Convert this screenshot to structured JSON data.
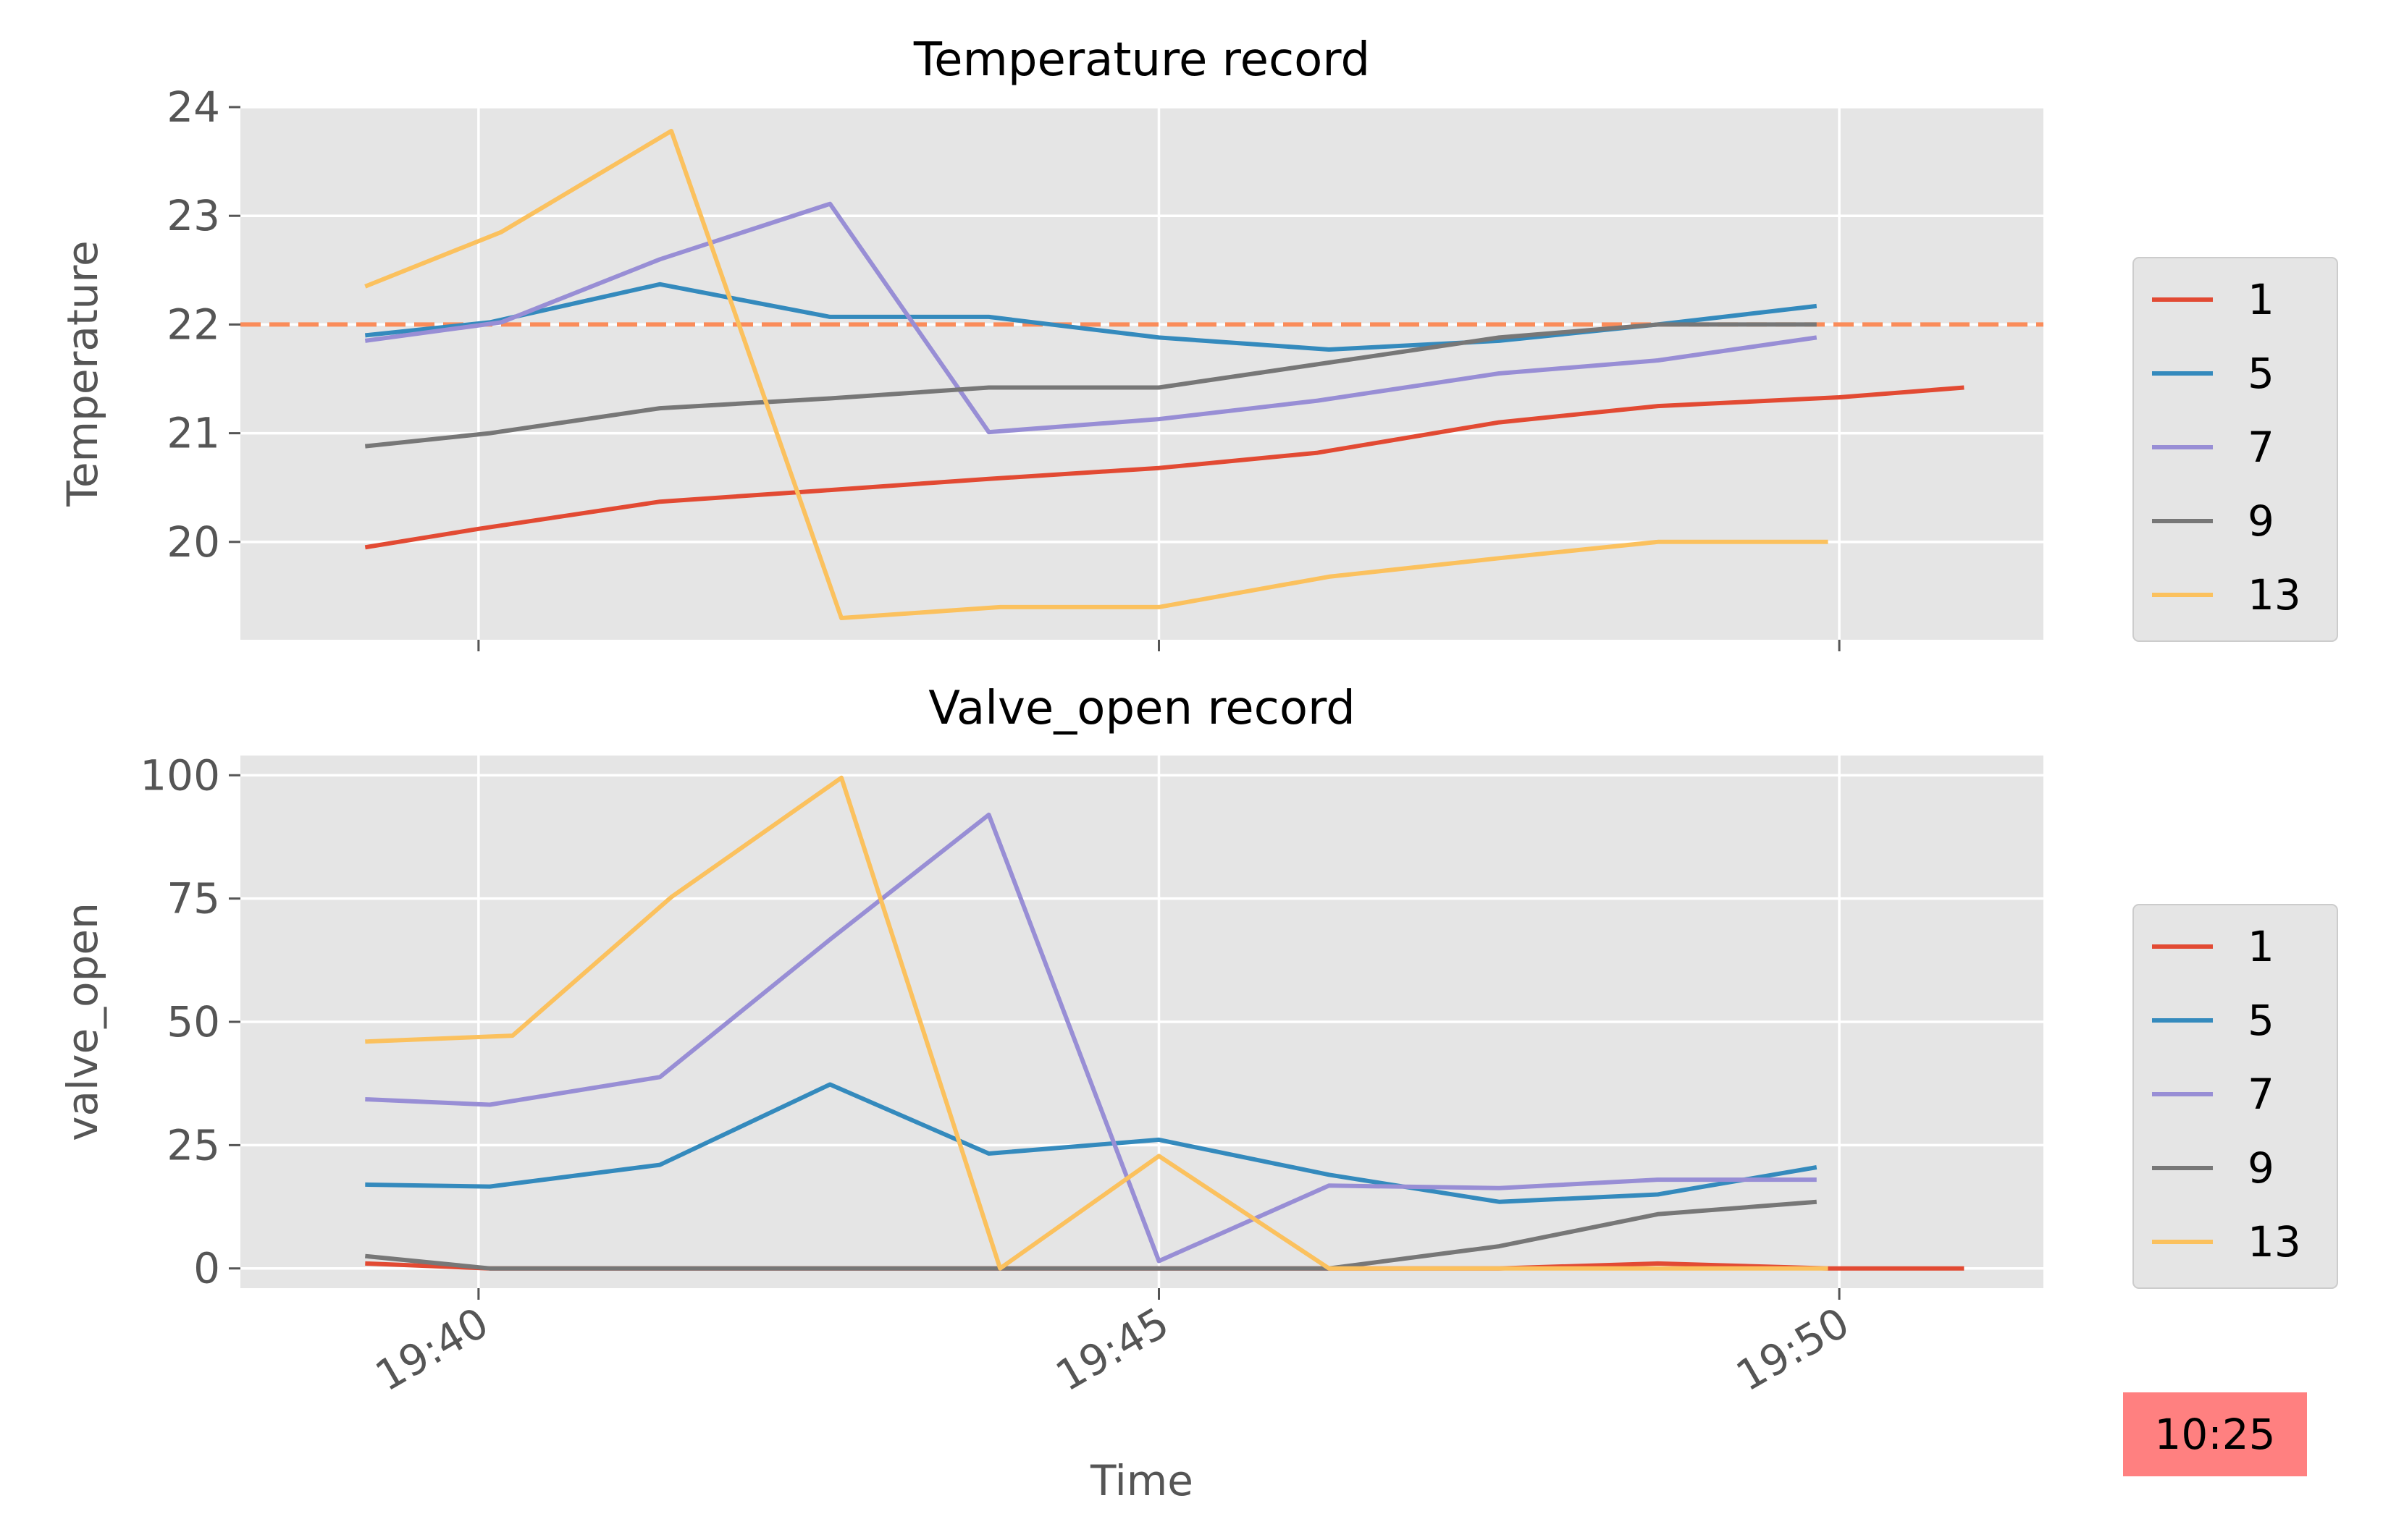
{
  "colors": {
    "1": "#e24a33",
    "5": "#348abd",
    "7": "#988ed5",
    "9": "#777777",
    "13": "#fbc15e",
    "setpoint": "#fa8c5a",
    "panel": "#e5e5e5",
    "grid": "#ffffff",
    "badge": "#ff8080"
  },
  "time_badge": "10:25",
  "chart_data": [
    {
      "type": "line",
      "title": "Temperature record",
      "xlabel": "",
      "ylabel": "Temperature",
      "xlim": [
        "19:38:15",
        "19:51:30"
      ],
      "ylim": [
        19.1,
        24.0
      ],
      "yticks": [
        20,
        21,
        22,
        23,
        24
      ],
      "xticks": [
        "19:40",
        "19:45",
        "19:50"
      ],
      "xtick_labels_shown": false,
      "grid": true,
      "legend_position": "right",
      "reference_line": {
        "y": 22,
        "style": "dashed"
      },
      "series": [
        {
          "name": "1",
          "points": [
            [
              "19:39:10",
              19.95
            ],
            [
              "19:40:00",
              20.12
            ],
            [
              "19:41:20",
              20.37
            ],
            [
              "19:42:30",
              20.47
            ],
            [
              "19:43:45",
              20.58
            ],
            [
              "19:45:00",
              20.68
            ],
            [
              "19:46:10",
              20.82
            ],
            [
              "19:47:30",
              21.1
            ],
            [
              "19:48:40",
              21.25
            ],
            [
              "19:50:00",
              21.33
            ],
            [
              "19:50:55",
              21.42
            ]
          ]
        },
        {
          "name": "5",
          "points": [
            [
              "19:39:10",
              21.9
            ],
            [
              "19:40:05",
              22.02
            ],
            [
              "19:41:20",
              22.37
            ],
            [
              "19:42:35",
              22.07
            ],
            [
              "19:43:45",
              22.07
            ],
            [
              "19:45:00",
              21.88
            ],
            [
              "19:46:15",
              21.77
            ],
            [
              "19:47:30",
              21.85
            ],
            [
              "19:48:40",
              22.0
            ],
            [
              "19:49:50",
              22.17
            ]
          ]
        },
        {
          "name": "7",
          "points": [
            [
              "19:39:10",
              21.85
            ],
            [
              "19:40:10",
              22.02
            ],
            [
              "19:41:20",
              22.6
            ],
            [
              "19:42:35",
              23.11
            ],
            [
              "19:43:45",
              21.01
            ],
            [
              "19:45:00",
              21.13
            ],
            [
              "19:46:10",
              21.3
            ],
            [
              "19:47:30",
              21.55
            ],
            [
              "19:48:40",
              21.67
            ],
            [
              "19:49:50",
              21.88
            ]
          ]
        },
        {
          "name": "9",
          "points": [
            [
              "19:39:10",
              20.88
            ],
            [
              "19:40:05",
              21.0
            ],
            [
              "19:41:20",
              21.23
            ],
            [
              "19:42:35",
              21.32
            ],
            [
              "19:43:45",
              21.42
            ],
            [
              "19:45:00",
              21.42
            ],
            [
              "19:46:15",
              21.65
            ],
            [
              "19:47:30",
              21.88
            ],
            [
              "19:48:40",
              22.0
            ],
            [
              "19:49:50",
              22.0
            ]
          ]
        },
        {
          "name": "13",
          "points": [
            [
              "19:39:10",
              22.35
            ],
            [
              "19:40:10",
              22.85
            ],
            [
              "19:41:25",
              23.78
            ],
            [
              "19:42:40",
              19.3
            ],
            [
              "19:43:50",
              19.4
            ],
            [
              "19:45:00",
              19.4
            ],
            [
              "19:46:15",
              19.68
            ],
            [
              "19:47:30",
              19.85
            ],
            [
              "19:48:40",
              20.0
            ],
            [
              "19:49:55",
              20.0
            ]
          ]
        }
      ]
    },
    {
      "type": "line",
      "title": "Valve_open record",
      "xlabel": "Time",
      "ylabel": "valve_open",
      "xlim": [
        "19:38:15",
        "19:51:30"
      ],
      "ylim": [
        -4,
        104
      ],
      "yticks": [
        0,
        25,
        50,
        75,
        100
      ],
      "xticks": [
        "19:40",
        "19:45",
        "19:50"
      ],
      "xtick_labels_shown": true,
      "grid": true,
      "legend_position": "right",
      "series": [
        {
          "name": "1",
          "points": [
            [
              "19:39:10",
              1
            ],
            [
              "19:40:05",
              0
            ],
            [
              "19:41:20",
              0
            ],
            [
              "19:42:35",
              0
            ],
            [
              "19:43:45",
              0
            ],
            [
              "19:45:00",
              0
            ],
            [
              "19:46:15",
              0
            ],
            [
              "19:47:30",
              0
            ],
            [
              "19:48:40",
              1
            ],
            [
              "19:49:55",
              0
            ],
            [
              "19:50:55",
              0
            ]
          ]
        },
        {
          "name": "5",
          "points": [
            [
              "19:39:10",
              17
            ],
            [
              "19:40:05",
              16.6
            ],
            [
              "19:41:20",
              21
            ],
            [
              "19:42:35",
              37.3
            ],
            [
              "19:43:45",
              23.3
            ],
            [
              "19:45:00",
              26.1
            ],
            [
              "19:46:15",
              19
            ],
            [
              "19:47:30",
              13.5
            ],
            [
              "19:48:40",
              15
            ],
            [
              "19:49:50",
              20.5
            ]
          ]
        },
        {
          "name": "7",
          "points": [
            [
              "19:39:10",
              34.3
            ],
            [
              "19:40:05",
              33.2
            ],
            [
              "19:41:20",
              38.8
            ],
            [
              "19:42:35",
              66.7
            ],
            [
              "19:43:45",
              92
            ],
            [
              "19:45:00",
              1.5
            ],
            [
              "19:46:15",
              16.8
            ],
            [
              "19:47:30",
              16.3
            ],
            [
              "19:48:40",
              18
            ],
            [
              "19:49:50",
              18
            ]
          ]
        },
        {
          "name": "9",
          "points": [
            [
              "19:39:10",
              2.5
            ],
            [
              "19:40:05",
              0
            ],
            [
              "19:41:20",
              0
            ],
            [
              "19:42:35",
              0
            ],
            [
              "19:43:45",
              0
            ],
            [
              "19:45:00",
              0
            ],
            [
              "19:46:15",
              0
            ],
            [
              "19:47:30",
              4.5
            ],
            [
              "19:48:40",
              11
            ],
            [
              "19:49:50",
              13.5
            ]
          ]
        },
        {
          "name": "13",
          "points": [
            [
              "19:39:10",
              46
            ],
            [
              "19:40:15",
              47.2
            ],
            [
              "19:41:25",
              75.3
            ],
            [
              "19:42:40",
              99.5
            ],
            [
              "19:43:50",
              0
            ],
            [
              "19:45:00",
              22.8
            ],
            [
              "19:46:15",
              0
            ],
            [
              "19:47:30",
              0
            ],
            [
              "19:48:40",
              0
            ],
            [
              "19:49:55",
              0
            ]
          ]
        }
      ]
    }
  ]
}
